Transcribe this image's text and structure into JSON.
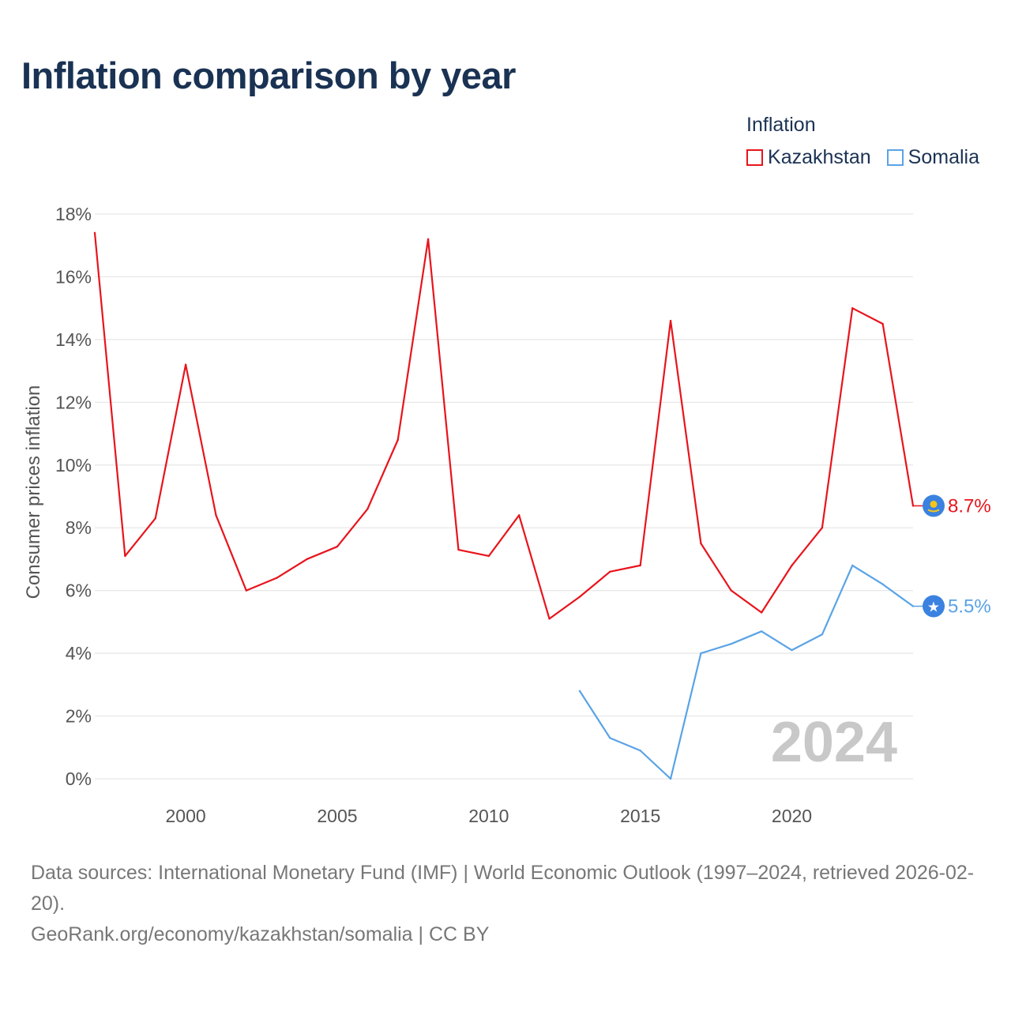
{
  "title": "Inflation comparison by year",
  "legend": {
    "title": "Inflation",
    "items": [
      {
        "label": "Kazakhstan",
        "color": "#e8141c"
      },
      {
        "label": "Somalia",
        "color": "#5aa3e6"
      }
    ]
  },
  "chart_data": {
    "type": "line",
    "ylabel": "Consumer prices inflation",
    "ylim": [
      0,
      18
    ],
    "yticks": [
      0,
      2,
      4,
      6,
      8,
      10,
      12,
      14,
      16,
      18
    ],
    "ytick_labels": [
      "0%",
      "2%",
      "4%",
      "6%",
      "8%",
      "10%",
      "12%",
      "14%",
      "16%",
      "18%"
    ],
    "xlim": [
      1997,
      2024
    ],
    "xticks": [
      2000,
      2005,
      2010,
      2015,
      2020
    ],
    "xtick_labels": [
      "2000",
      "2005",
      "2010",
      "2015",
      "2020"
    ],
    "current_year_label": "2024",
    "series": [
      {
        "name": "Kazakhstan",
        "color": "#e8141c",
        "end_label": "8.7%",
        "x": [
          1997,
          1998,
          1999,
          2000,
          2001,
          2002,
          2003,
          2004,
          2005,
          2006,
          2007,
          2008,
          2009,
          2010,
          2011,
          2012,
          2013,
          2014,
          2015,
          2016,
          2017,
          2018,
          2019,
          2020,
          2021,
          2022,
          2023,
          2024
        ],
        "values": [
          17.4,
          7.1,
          8.3,
          13.2,
          8.4,
          6.0,
          6.4,
          7.0,
          7.4,
          8.6,
          10.8,
          17.2,
          7.3,
          7.1,
          8.4,
          5.1,
          5.8,
          6.6,
          6.8,
          14.6,
          7.5,
          6.0,
          5.3,
          6.8,
          8.0,
          15.0,
          14.5,
          8.7
        ]
      },
      {
        "name": "Somalia",
        "color": "#5aa3e6",
        "end_label": "5.5%",
        "x": [
          2013,
          2014,
          2015,
          2016,
          2017,
          2018,
          2019,
          2020,
          2021,
          2022,
          2023,
          2024
        ],
        "values": [
          2.8,
          1.3,
          0.9,
          0.0,
          4.0,
          4.3,
          4.7,
          4.1,
          4.6,
          6.8,
          6.2,
          5.5
        ]
      }
    ]
  },
  "footer": {
    "line1": "Data sources: International Monetary Fund (IMF) | World Economic Outlook (1997–2024, retrieved 2026-02-20).",
    "line2": "GeoRank.org/economy/kazakhstan/somalia | CC BY"
  }
}
